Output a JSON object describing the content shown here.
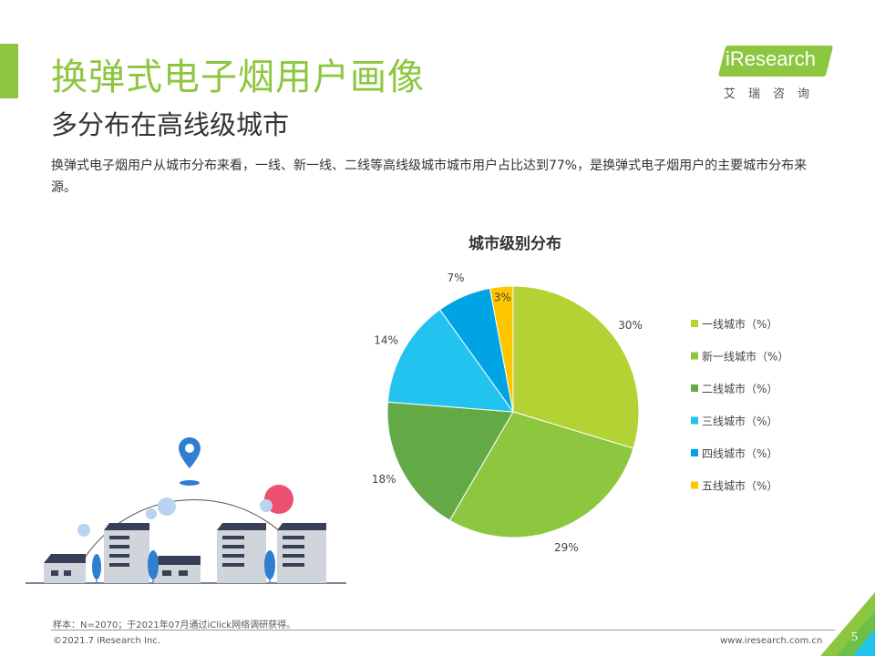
{
  "header": {
    "title": "换弹式电子烟用户画像",
    "subtitle": "多分布在高线级城市",
    "description": "换弹式电子烟用户从城市分布来看，一线、新一线、二线等高线级城市城市用户占比达到77%，是换弹式电子烟用户的主要城市分布来源。"
  },
  "logo": {
    "text": "iResearch",
    "cn": "艾瑞咨询"
  },
  "chart_data": {
    "type": "pie",
    "title": "城市级别分布",
    "categories": [
      "一线城市（%）",
      "新一线城市（%）",
      "二线城市（%）",
      "三线城市（%）",
      "四线城市（%）",
      "五线城市（%）"
    ],
    "values": [
      30,
      29,
      18,
      14,
      7,
      3
    ],
    "value_labels": [
      "30%",
      "29%",
      "18%",
      "14%",
      "7%",
      "3%"
    ],
    "colors": [
      "#b3d334",
      "#8dc63f",
      "#63aa47",
      "#22c3ee",
      "#00a3e4",
      "#ffc600"
    ],
    "legend_position": "right"
  },
  "footer": {
    "note": "样本：N=2070；于2021年07月通过iClick网络调研获得。",
    "copyright": "©2021.7 iResearch Inc.",
    "website": "www.iresearch.com.cn",
    "page": "5"
  }
}
